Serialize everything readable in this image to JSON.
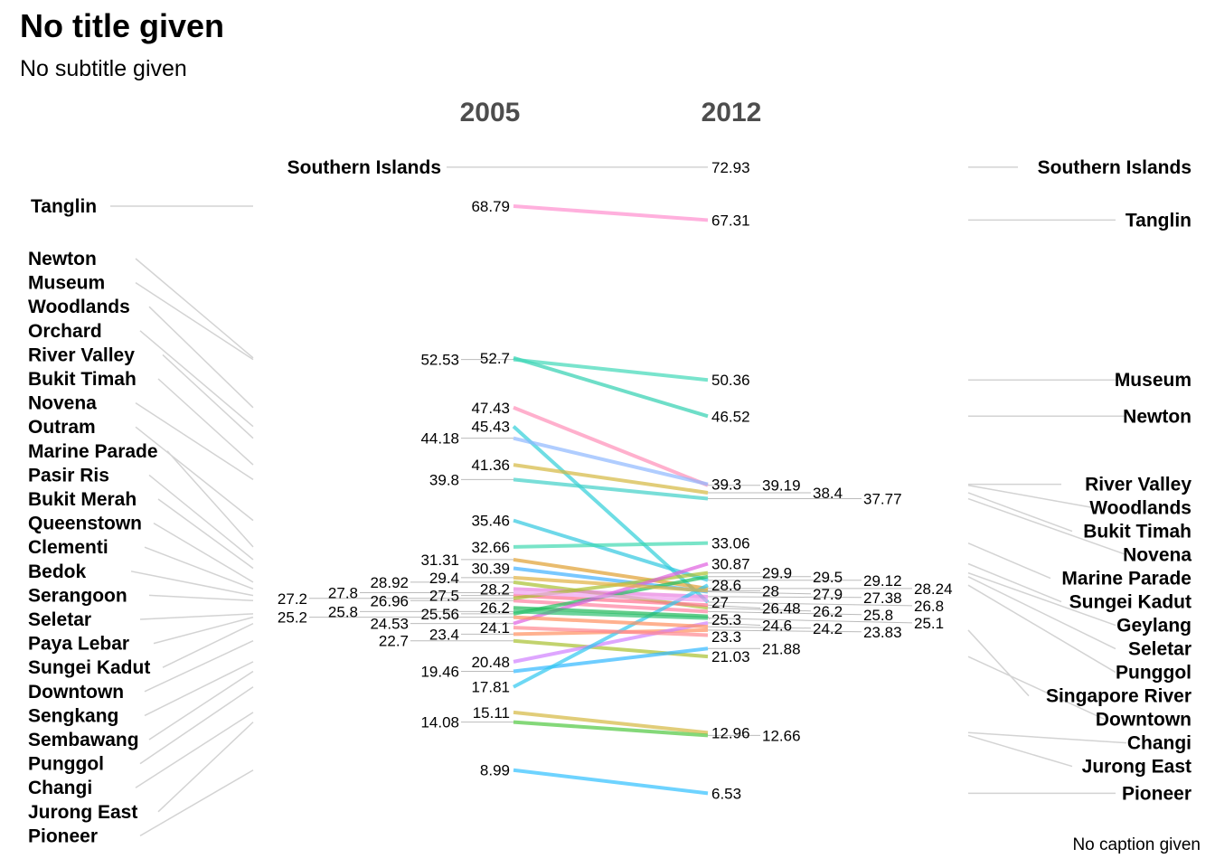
{
  "title": "No title given",
  "subtitle": "No subtitle given",
  "caption": "No caption given",
  "chart_data": {
    "type": "line",
    "subtype": "slopegraph",
    "x": [
      "2005",
      "2012"
    ],
    "ylim": [
      5,
      75
    ],
    "series": [
      {
        "name": "Southern Islands",
        "values": [
          null,
          72.93
        ],
        "color": "#999999",
        "left_label": true,
        "right_label": true
      },
      {
        "name": "Tanglin",
        "values": [
          68.79,
          67.31
        ],
        "color": "#ff8fcf",
        "left_label": true,
        "right_label": true
      },
      {
        "name": "Newton",
        "values": [
          52.7,
          46.52
        ],
        "color": "#30d0b0",
        "left_label": true,
        "right_label": true
      },
      {
        "name": "Museum",
        "values": [
          52.53,
          50.36
        ],
        "color": "#40d8b8",
        "left_label": true,
        "right_label": true
      },
      {
        "name": "Woodlands",
        "values": [
          47.43,
          39.19
        ],
        "color": "#ff8fb8",
        "left_label": true,
        "right_label": true
      },
      {
        "name": "Orchard",
        "values": [
          45.43,
          26.8
        ],
        "color": "#30cfd8",
        "left_label": true,
        "right_label": false
      },
      {
        "name": "River Valley",
        "values": [
          44.18,
          39.3
        ],
        "color": "#8fb8ff",
        "left_label": true,
        "right_label": true
      },
      {
        "name": "Bukit Timah",
        "values": [
          41.36,
          38.4
        ],
        "color": "#d4b840",
        "left_label": true,
        "right_label": true
      },
      {
        "name": "Novena",
        "values": [
          39.8,
          37.77
        ],
        "color": "#40d0c8",
        "left_label": true,
        "right_label": true
      },
      {
        "name": "Outram",
        "values": [
          35.46,
          29.12
        ],
        "color": "#30c8e0",
        "left_label": true,
        "right_label": false
      },
      {
        "name": "Marine Parade",
        "values": [
          32.66,
          33.06
        ],
        "color": "#40d8b0",
        "left_label": true,
        "right_label": true
      },
      {
        "name": "Pasir Ris",
        "values": [
          31.31,
          28.24
        ],
        "color": "#e0a030",
        "left_label": true,
        "right_label": false
      },
      {
        "name": "Bukit Merah",
        "values": [
          30.39,
          27.9
        ],
        "color": "#40b0ff",
        "left_label": true,
        "right_label": false
      },
      {
        "name": "Queenstown",
        "values": [
          28.92,
          26.2
        ],
        "color": "#a8c030",
        "left_label": true,
        "right_label": false
      },
      {
        "name": "Clementi",
        "values": [
          28.2,
          27.38
        ],
        "color": "#e880e0",
        "left_label": true,
        "right_label": false
      },
      {
        "name": "Bedok",
        "values": [
          27.5,
          26.48
        ],
        "color": "#ff7090",
        "left_label": true,
        "right_label": false
      },
      {
        "name": "Serangoon",
        "values": [
          26.96,
          25.8
        ],
        "color": "#ff80a0",
        "left_label": true,
        "right_label": false
      },
      {
        "name": "Geylang",
        "values": [
          27.2,
          29.9
        ],
        "color": "#a8c030",
        "left_label": false,
        "right_label": true
      },
      {
        "name": "Seletar",
        "values": [
          25.56,
          29.5
        ],
        "color": "#20c060",
        "left_label": true,
        "right_label": true
      },
      {
        "name": "Sungei Kadut",
        "values": [
          24.53,
          30.87
        ],
        "color": "#e060e0",
        "left_label": true,
        "right_label": true
      },
      {
        "name": "Singapore River",
        "values": [
          23.4,
          23.83
        ],
        "color": "#ff9060",
        "left_label": false,
        "right_label": true
      },
      {
        "name": "Downtown",
        "values": [
          22.7,
          21.03
        ],
        "color": "#a8c030",
        "left_label": true,
        "right_label": true
      },
      {
        "name": "Sengkang",
        "values": [
          20.48,
          24.6
        ],
        "color": "#d080ff",
        "left_label": true,
        "right_label": false
      },
      {
        "name": "Sembawang",
        "values": [
          19.46,
          21.88
        ],
        "color": "#30b8ff",
        "left_label": true,
        "right_label": false
      },
      {
        "name": "Punggol",
        "values": [
          17.81,
          28.6
        ],
        "color": "#30c8f0",
        "left_label": true,
        "right_label": true
      },
      {
        "name": "Paya Lebar",
        "values": [
          25.2,
          24.2
        ],
        "color": "#ff9060",
        "left_label": true,
        "right_label": false
      },
      {
        "name": "Changi",
        "values": [
          15.11,
          12.96
        ],
        "color": "#d4b840",
        "left_label": true,
        "right_label": true
      },
      {
        "name": "Jurong East",
        "values": [
          14.08,
          12.66
        ],
        "color": "#50c840",
        "left_label": true,
        "right_label": true
      },
      {
        "name": "Pioneer",
        "values": [
          8.99,
          6.53
        ],
        "color": "#30c0ff",
        "left_label": true,
        "right_label": true
      },
      {
        "name": "",
        "values": [
          26.2,
          25.3
        ],
        "color": "#20b858",
        "left_label": false,
        "right_label": false
      },
      {
        "name": "",
        "values": [
          25.8,
          25.1
        ],
        "color": "#30c070",
        "left_label": false,
        "right_label": false
      },
      {
        "name": "",
        "values": [
          24.1,
          23.3
        ],
        "color": "#ff8890",
        "left_label": false,
        "right_label": false
      },
      {
        "name": "",
        "values": [
          27.8,
          27.0
        ],
        "color": "#f0a0f0",
        "left_label": false,
        "right_label": false
      },
      {
        "name": "",
        "values": [
          29.4,
          28.0
        ],
        "color": "#e0b040",
        "left_label": false,
        "right_label": false
      }
    ]
  }
}
